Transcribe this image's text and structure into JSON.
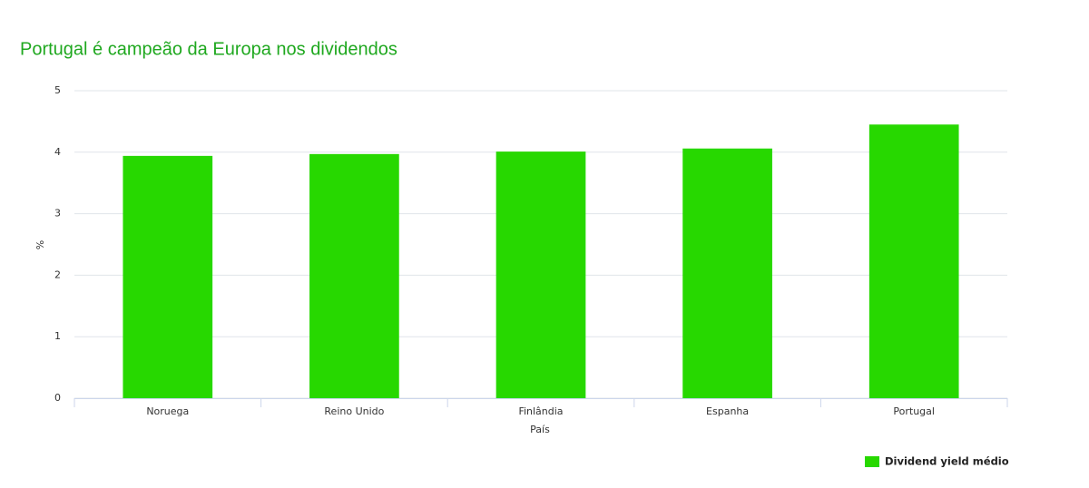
{
  "chart_data": {
    "type": "bar",
    "title": "Portugal é campeão da Europa nos dividendos",
    "x_label": "País",
    "y_label": "%",
    "categories": [
      "Noruega",
      "Reino Unido",
      "Finlândia",
      "Espanha",
      "Portugal"
    ],
    "series": [
      {
        "name": "Dividend yield médio",
        "color": "#27d800",
        "values": [
          3.94,
          3.97,
          4.01,
          4.06,
          4.45
        ]
      }
    ],
    "ylim": [
      0,
      5
    ],
    "yticks": [
      0,
      1,
      2,
      3,
      4,
      5
    ],
    "grid": true,
    "legend": "bottom-right"
  }
}
